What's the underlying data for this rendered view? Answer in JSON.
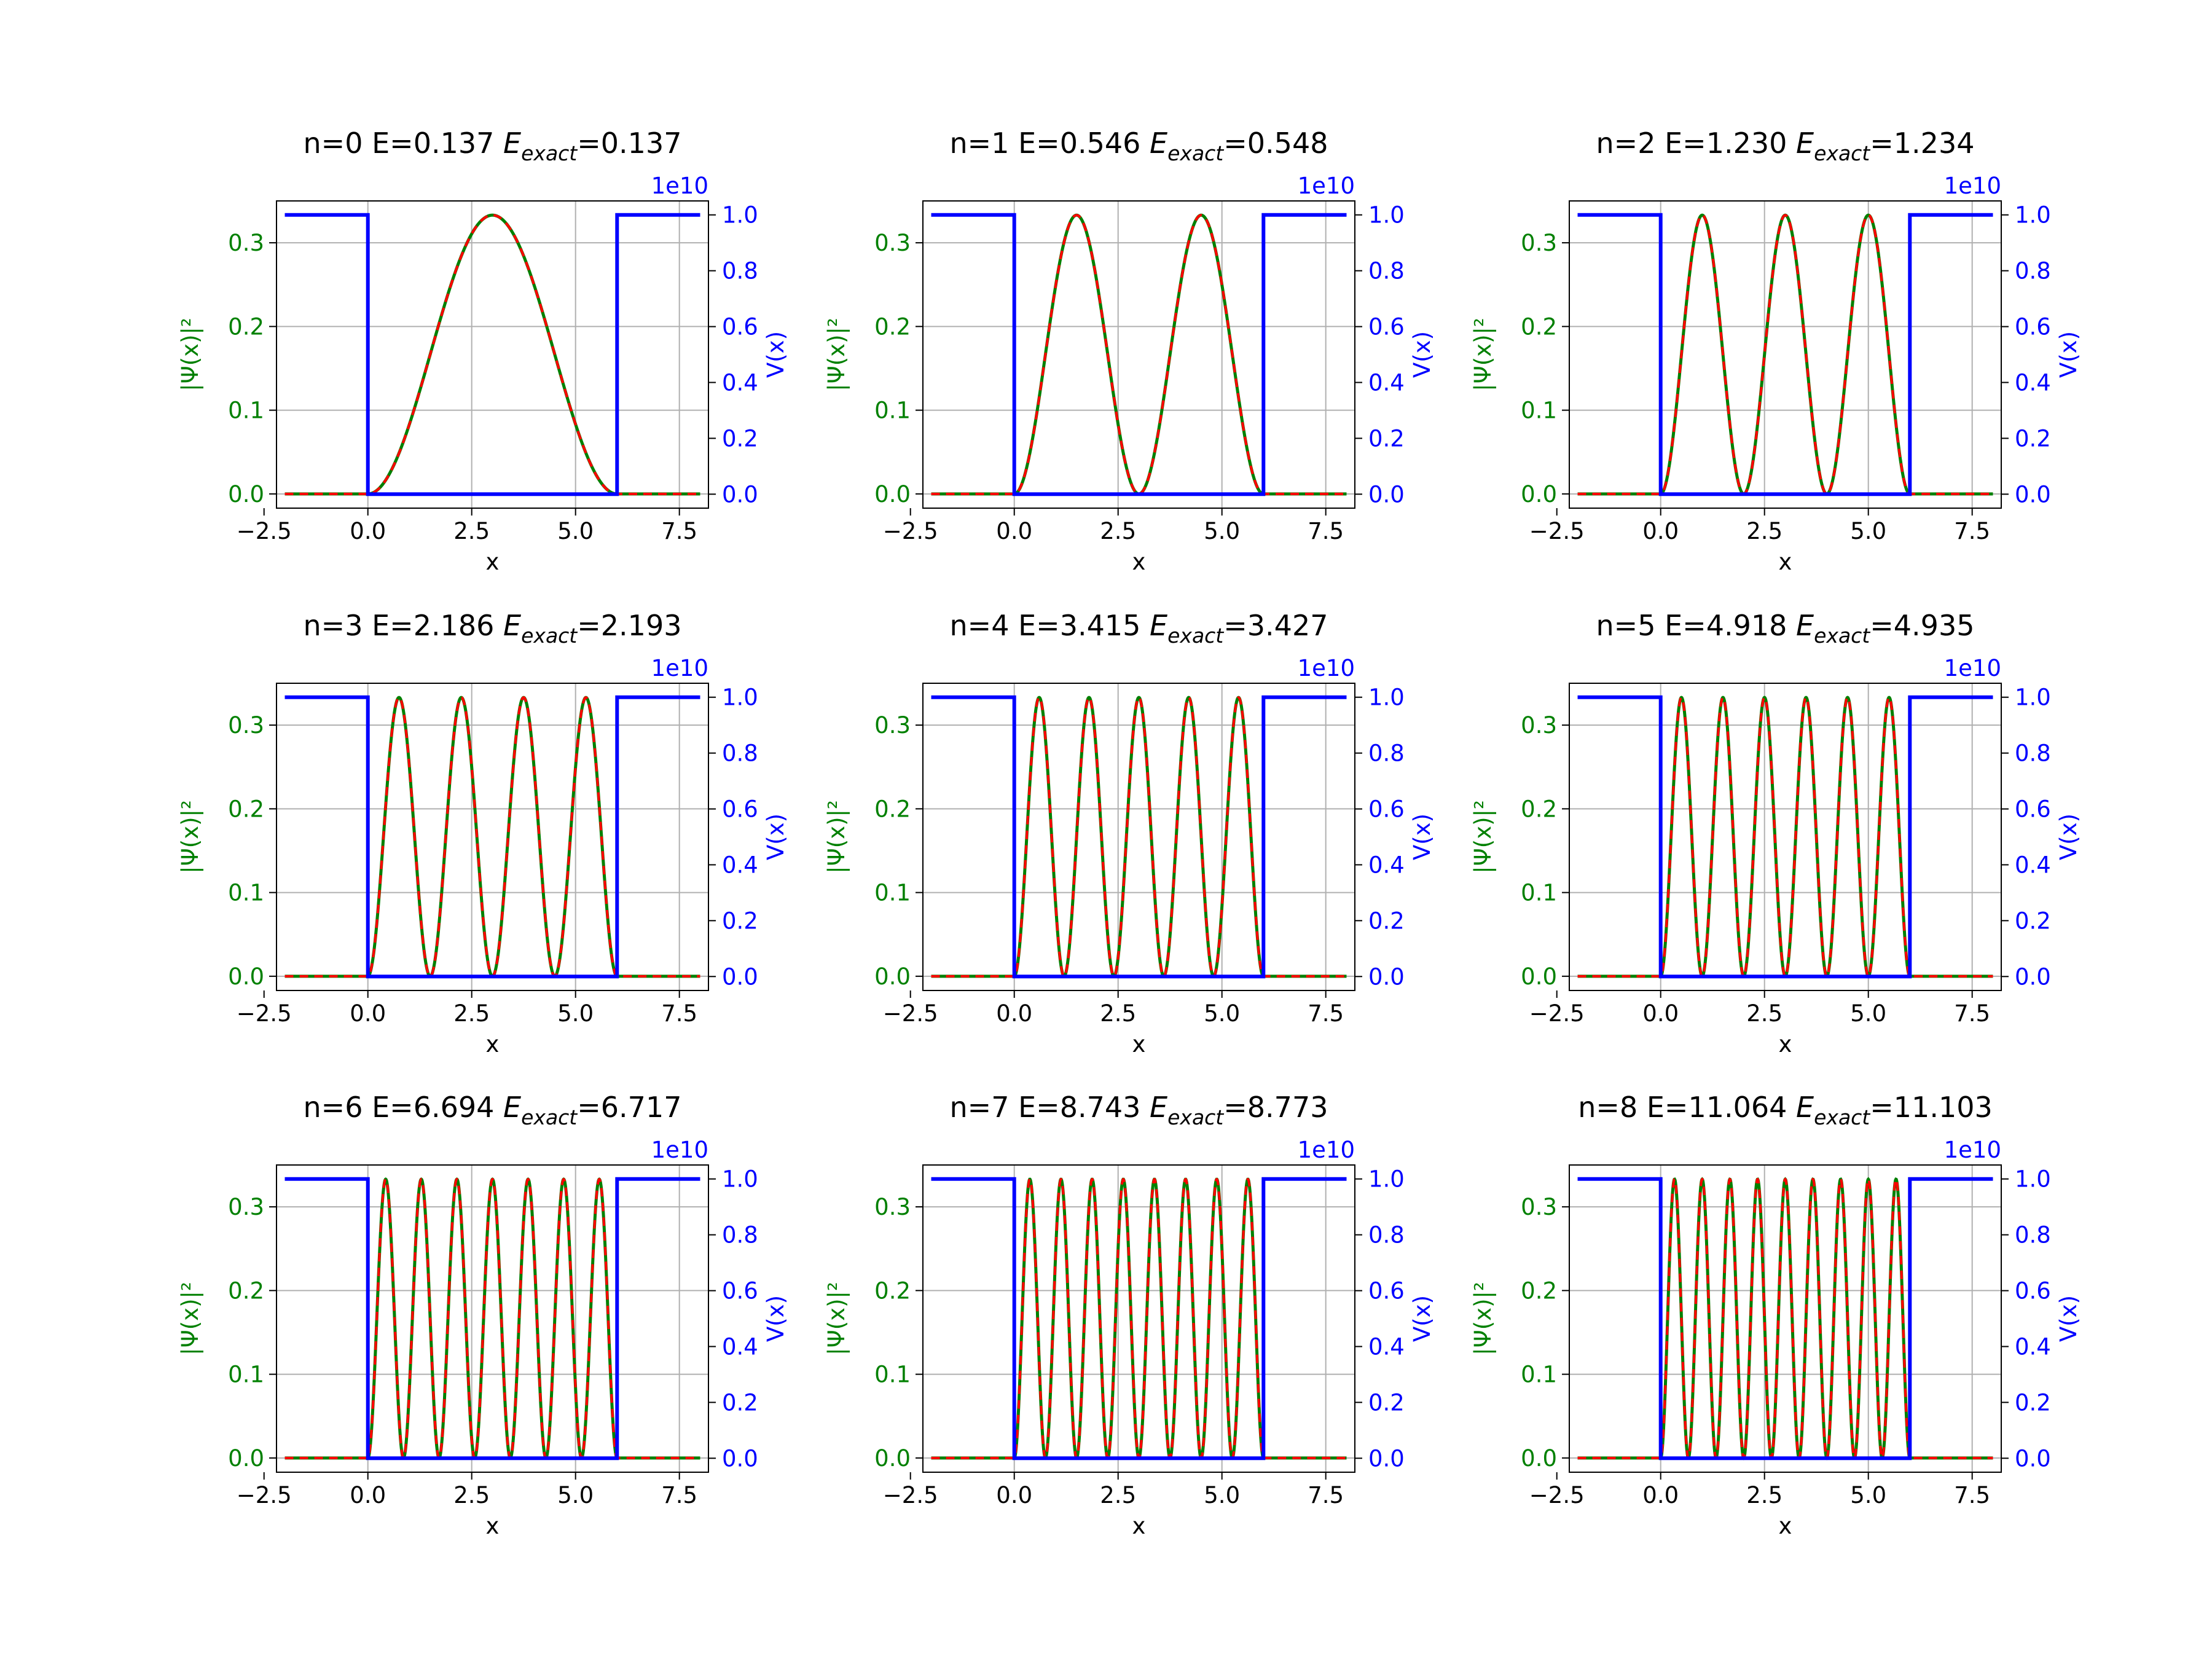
{
  "colors": {
    "psi": "#008000",
    "psi_exact": "#ff0000",
    "potential": "#0000ff",
    "grid": "#b0b0b0",
    "axes": "#000000"
  },
  "chart_data": [
    {
      "type": "line",
      "n": 0,
      "title_n": "n=0",
      "title_e": "E=0.137",
      "title_exact_val": "=0.137",
      "energy": 0.137,
      "energy_exact": 0.137,
      "xlabel": "x",
      "ylabel_left": "|Ψ(x)|²",
      "ylabel_right": "V(x)",
      "right_multiplier": "1e10",
      "xlim": [
        -2.2,
        8.2
      ],
      "ylim_left": [
        -0.017,
        0.35
      ],
      "ylim_right": [
        -0.05,
        1.05
      ],
      "x_ticks": [
        "−2.5",
        "0.0",
        "2.5",
        "5.0",
        "7.5"
      ],
      "x_tick_values": [
        -2.5,
        0,
        2.5,
        5,
        7.5
      ],
      "y_left_ticks": [
        "0.0",
        "0.1",
        "0.2",
        "0.3"
      ],
      "y_left_tick_values": [
        0,
        0.1,
        0.2,
        0.3
      ],
      "y_right_ticks": [
        "0.0",
        "0.2",
        "0.4",
        "0.6",
        "0.8",
        "1.0"
      ],
      "y_right_tick_values": [
        0,
        0.2,
        0.4,
        0.6,
        0.8,
        1.0
      ],
      "well": {
        "x_min": -2,
        "x_max": 8,
        "left_wall": 0,
        "right_wall": 6,
        "inside": 0,
        "outside": 1.0
      },
      "density_peak": 0.333,
      "grid": true
    },
    {
      "type": "line",
      "n": 1,
      "title_n": "n=1",
      "title_e": "E=0.546",
      "title_exact_val": "=0.548",
      "energy": 0.546,
      "energy_exact": 0.548,
      "xlabel": "x",
      "ylabel_left": "|Ψ(x)|²",
      "ylabel_right": "V(x)",
      "right_multiplier": "1e10",
      "xlim": [
        -2.2,
        8.2
      ],
      "ylim_left": [
        -0.017,
        0.35
      ],
      "ylim_right": [
        -0.05,
        1.05
      ],
      "x_ticks": [
        "−2.5",
        "0.0",
        "2.5",
        "5.0",
        "7.5"
      ],
      "x_tick_values": [
        -2.5,
        0,
        2.5,
        5,
        7.5
      ],
      "y_left_ticks": [
        "0.0",
        "0.1",
        "0.2",
        "0.3"
      ],
      "y_left_tick_values": [
        0,
        0.1,
        0.2,
        0.3
      ],
      "y_right_ticks": [
        "0.0",
        "0.2",
        "0.4",
        "0.6",
        "0.8",
        "1.0"
      ],
      "y_right_tick_values": [
        0,
        0.2,
        0.4,
        0.6,
        0.8,
        1.0
      ],
      "well": {
        "x_min": -2,
        "x_max": 8,
        "left_wall": 0,
        "right_wall": 6,
        "inside": 0,
        "outside": 1.0
      },
      "density_peak": 0.333,
      "grid": true
    },
    {
      "type": "line",
      "n": 2,
      "title_n": "n=2",
      "title_e": "E=1.230",
      "title_exact_val": "=1.234",
      "energy": 1.23,
      "energy_exact": 1.234,
      "xlabel": "x",
      "ylabel_left": "|Ψ(x)|²",
      "ylabel_right": "V(x)",
      "right_multiplier": "1e10",
      "xlim": [
        -2.2,
        8.2
      ],
      "ylim_left": [
        -0.017,
        0.35
      ],
      "ylim_right": [
        -0.05,
        1.05
      ],
      "x_ticks": [
        "−2.5",
        "0.0",
        "2.5",
        "5.0",
        "7.5"
      ],
      "x_tick_values": [
        -2.5,
        0,
        2.5,
        5,
        7.5
      ],
      "y_left_ticks": [
        "0.0",
        "0.1",
        "0.2",
        "0.3"
      ],
      "y_left_tick_values": [
        0,
        0.1,
        0.2,
        0.3
      ],
      "y_right_ticks": [
        "0.0",
        "0.2",
        "0.4",
        "0.6",
        "0.8",
        "1.0"
      ],
      "y_right_tick_values": [
        0,
        0.2,
        0.4,
        0.6,
        0.8,
        1.0
      ],
      "well": {
        "x_min": -2,
        "x_max": 8,
        "left_wall": 0,
        "right_wall": 6,
        "inside": 0,
        "outside": 1.0
      },
      "density_peak": 0.333,
      "grid": true
    },
    {
      "type": "line",
      "n": 3,
      "title_n": "n=3",
      "title_e": "E=2.186",
      "title_exact_val": "=2.193",
      "energy": 2.186,
      "energy_exact": 2.193,
      "xlabel": "x",
      "ylabel_left": "|Ψ(x)|²",
      "ylabel_right": "V(x)",
      "right_multiplier": "1e10",
      "xlim": [
        -2.2,
        8.2
      ],
      "ylim_left": [
        -0.017,
        0.35
      ],
      "ylim_right": [
        -0.05,
        1.05
      ],
      "x_ticks": [
        "−2.5",
        "0.0",
        "2.5",
        "5.0",
        "7.5"
      ],
      "x_tick_values": [
        -2.5,
        0,
        2.5,
        5,
        7.5
      ],
      "y_left_ticks": [
        "0.0",
        "0.1",
        "0.2",
        "0.3"
      ],
      "y_left_tick_values": [
        0,
        0.1,
        0.2,
        0.3
      ],
      "y_right_ticks": [
        "0.0",
        "0.2",
        "0.4",
        "0.6",
        "0.8",
        "1.0"
      ],
      "y_right_tick_values": [
        0,
        0.2,
        0.4,
        0.6,
        0.8,
        1.0
      ],
      "well": {
        "x_min": -2,
        "x_max": 8,
        "left_wall": 0,
        "right_wall": 6,
        "inside": 0,
        "outside": 1.0
      },
      "density_peak": 0.333,
      "grid": true
    },
    {
      "type": "line",
      "n": 4,
      "title_n": "n=4",
      "title_e": "E=3.415",
      "title_exact_val": "=3.427",
      "energy": 3.415,
      "energy_exact": 3.427,
      "xlabel": "x",
      "ylabel_left": "|Ψ(x)|²",
      "ylabel_right": "V(x)",
      "right_multiplier": "1e10",
      "xlim": [
        -2.2,
        8.2
      ],
      "ylim_left": [
        -0.017,
        0.35
      ],
      "ylim_right": [
        -0.05,
        1.05
      ],
      "x_ticks": [
        "−2.5",
        "0.0",
        "2.5",
        "5.0",
        "7.5"
      ],
      "x_tick_values": [
        -2.5,
        0,
        2.5,
        5,
        7.5
      ],
      "y_left_ticks": [
        "0.0",
        "0.1",
        "0.2",
        "0.3"
      ],
      "y_left_tick_values": [
        0,
        0.1,
        0.2,
        0.3
      ],
      "y_right_ticks": [
        "0.0",
        "0.2",
        "0.4",
        "0.6",
        "0.8",
        "1.0"
      ],
      "y_right_tick_values": [
        0,
        0.2,
        0.4,
        0.6,
        0.8,
        1.0
      ],
      "well": {
        "x_min": -2,
        "x_max": 8,
        "left_wall": 0,
        "right_wall": 6,
        "inside": 0,
        "outside": 1.0
      },
      "density_peak": 0.333,
      "grid": true
    },
    {
      "type": "line",
      "n": 5,
      "title_n": "n=5",
      "title_e": "E=4.918",
      "title_exact_val": "=4.935",
      "energy": 4.918,
      "energy_exact": 4.935,
      "xlabel": "x",
      "ylabel_left": "|Ψ(x)|²",
      "ylabel_right": "V(x)",
      "right_multiplier": "1e10",
      "xlim": [
        -2.2,
        8.2
      ],
      "ylim_left": [
        -0.017,
        0.35
      ],
      "ylim_right": [
        -0.05,
        1.05
      ],
      "x_ticks": [
        "−2.5",
        "0.0",
        "2.5",
        "5.0",
        "7.5"
      ],
      "x_tick_values": [
        -2.5,
        0,
        2.5,
        5,
        7.5
      ],
      "y_left_ticks": [
        "0.0",
        "0.1",
        "0.2",
        "0.3"
      ],
      "y_left_tick_values": [
        0,
        0.1,
        0.2,
        0.3
      ],
      "y_right_ticks": [
        "0.0",
        "0.2",
        "0.4",
        "0.6",
        "0.8",
        "1.0"
      ],
      "y_right_tick_values": [
        0,
        0.2,
        0.4,
        0.6,
        0.8,
        1.0
      ],
      "well": {
        "x_min": -2,
        "x_max": 8,
        "left_wall": 0,
        "right_wall": 6,
        "inside": 0,
        "outside": 1.0
      },
      "density_peak": 0.333,
      "grid": true
    },
    {
      "type": "line",
      "n": 6,
      "title_n": "n=6",
      "title_e": "E=6.694",
      "title_exact_val": "=6.717",
      "energy": 6.694,
      "energy_exact": 6.717,
      "xlabel": "x",
      "ylabel_left": "|Ψ(x)|²",
      "ylabel_right": "V(x)",
      "right_multiplier": "1e10",
      "xlim": [
        -2.2,
        8.2
      ],
      "ylim_left": [
        -0.017,
        0.35
      ],
      "ylim_right": [
        -0.05,
        1.05
      ],
      "x_ticks": [
        "−2.5",
        "0.0",
        "2.5",
        "5.0",
        "7.5"
      ],
      "x_tick_values": [
        -2.5,
        0,
        2.5,
        5,
        7.5
      ],
      "y_left_ticks": [
        "0.0",
        "0.1",
        "0.2",
        "0.3"
      ],
      "y_left_tick_values": [
        0,
        0.1,
        0.2,
        0.3
      ],
      "y_right_ticks": [
        "0.0",
        "0.2",
        "0.4",
        "0.6",
        "0.8",
        "1.0"
      ],
      "y_right_tick_values": [
        0,
        0.2,
        0.4,
        0.6,
        0.8,
        1.0
      ],
      "well": {
        "x_min": -2,
        "x_max": 8,
        "left_wall": 0,
        "right_wall": 6,
        "inside": 0,
        "outside": 1.0
      },
      "density_peak": 0.333,
      "grid": true
    },
    {
      "type": "line",
      "n": 7,
      "title_n": "n=7",
      "title_e": "E=8.743",
      "title_exact_val": "=8.773",
      "energy": 8.743,
      "energy_exact": 8.773,
      "xlabel": "x",
      "ylabel_left": "|Ψ(x)|²",
      "ylabel_right": "V(x)",
      "right_multiplier": "1e10",
      "xlim": [
        -2.2,
        8.2
      ],
      "ylim_left": [
        -0.017,
        0.35
      ],
      "ylim_right": [
        -0.05,
        1.05
      ],
      "x_ticks": [
        "−2.5",
        "0.0",
        "2.5",
        "5.0",
        "7.5"
      ],
      "x_tick_values": [
        -2.5,
        0,
        2.5,
        5,
        7.5
      ],
      "y_left_ticks": [
        "0.0",
        "0.1",
        "0.2",
        "0.3"
      ],
      "y_left_tick_values": [
        0,
        0.1,
        0.2,
        0.3
      ],
      "y_right_ticks": [
        "0.0",
        "0.2",
        "0.4",
        "0.6",
        "0.8",
        "1.0"
      ],
      "y_right_tick_values": [
        0,
        0.2,
        0.4,
        0.6,
        0.8,
        1.0
      ],
      "well": {
        "x_min": -2,
        "x_max": 8,
        "left_wall": 0,
        "right_wall": 6,
        "inside": 0,
        "outside": 1.0
      },
      "density_peak": 0.333,
      "grid": true
    },
    {
      "type": "line",
      "n": 8,
      "title_n": "n=8",
      "title_e": "E=11.064",
      "title_exact_val": "=11.103",
      "energy": 11.064,
      "energy_exact": 11.103,
      "xlabel": "x",
      "ylabel_left": "|Ψ(x)|²",
      "ylabel_right": "V(x)",
      "right_multiplier": "1e10",
      "xlim": [
        -2.2,
        8.2
      ],
      "ylim_left": [
        -0.017,
        0.35
      ],
      "ylim_right": [
        -0.05,
        1.05
      ],
      "x_ticks": [
        "−2.5",
        "0.0",
        "2.5",
        "5.0",
        "7.5"
      ],
      "x_tick_values": [
        -2.5,
        0,
        2.5,
        5,
        7.5
      ],
      "y_left_ticks": [
        "0.0",
        "0.1",
        "0.2",
        "0.3"
      ],
      "y_left_tick_values": [
        0,
        0.1,
        0.2,
        0.3
      ],
      "y_right_ticks": [
        "0.0",
        "0.2",
        "0.4",
        "0.6",
        "0.8",
        "1.0"
      ],
      "y_right_tick_values": [
        0,
        0.2,
        0.4,
        0.6,
        0.8,
        1.0
      ],
      "well": {
        "x_min": -2,
        "x_max": 8,
        "left_wall": 0,
        "right_wall": 6,
        "inside": 0,
        "outside": 1.0
      },
      "density_peak": 0.333,
      "grid": true
    }
  ]
}
